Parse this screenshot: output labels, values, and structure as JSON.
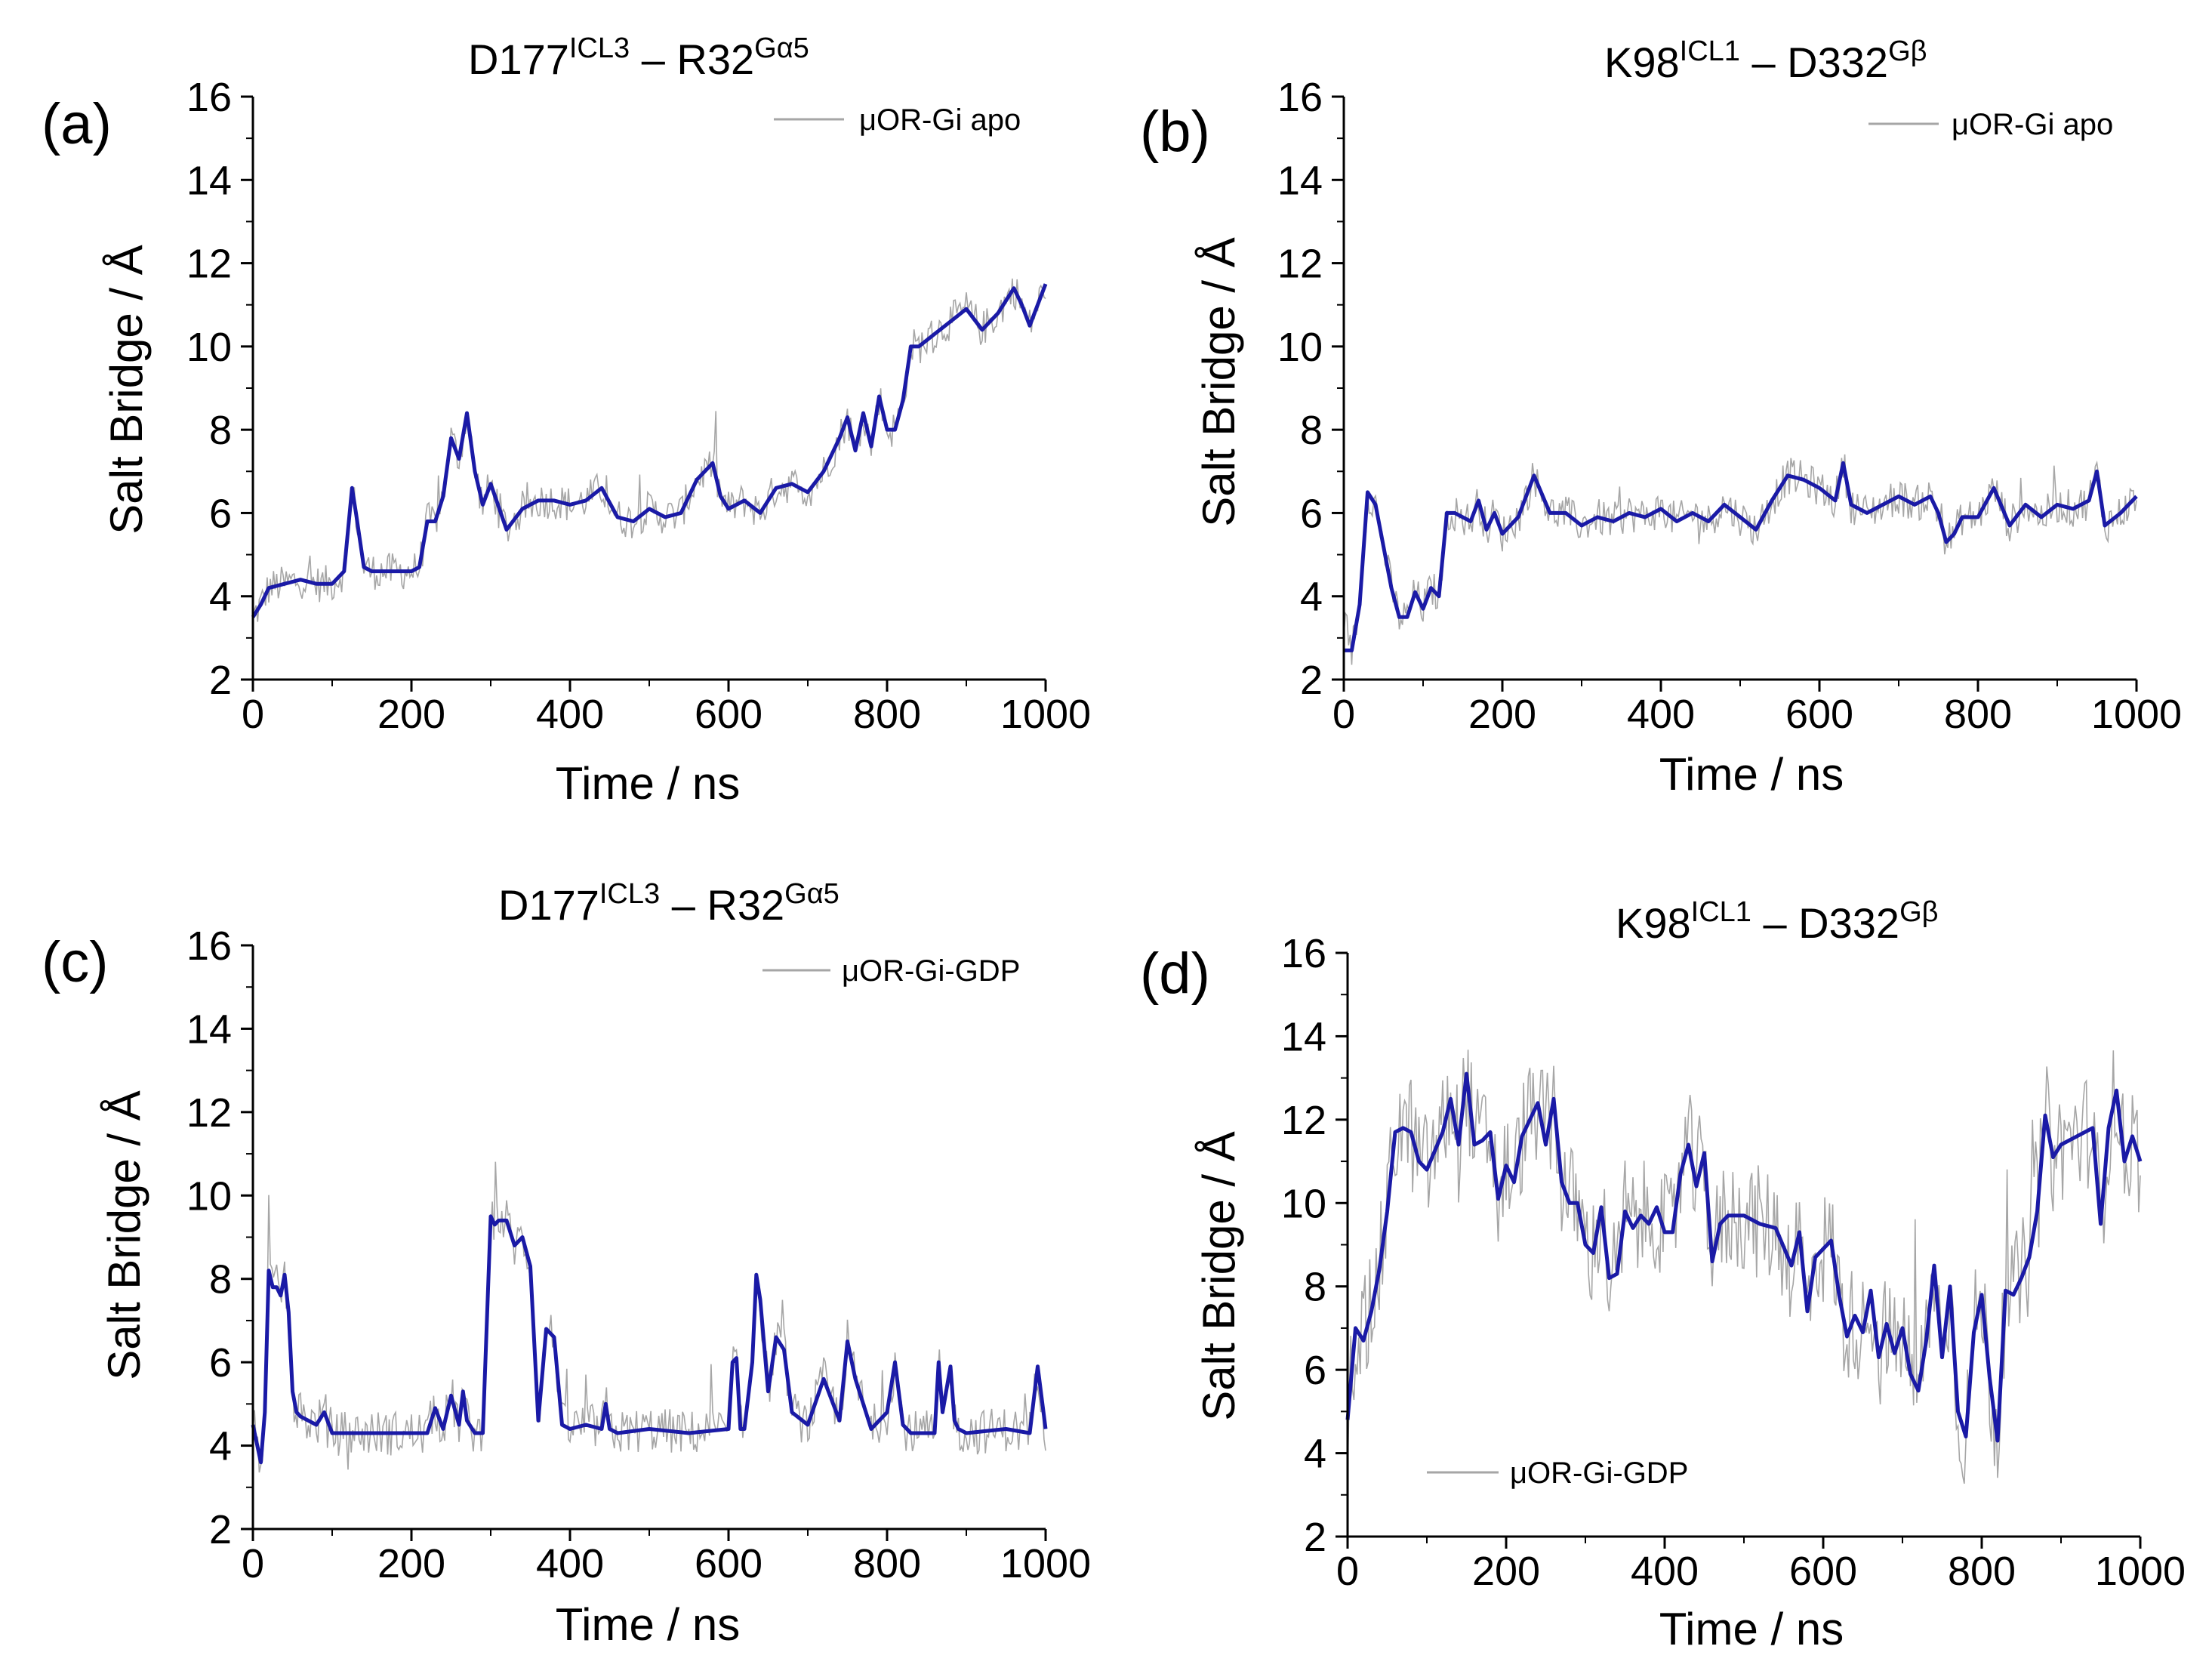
{
  "figure": {
    "series_colors": {
      "raw": "#a6a6a6",
      "smoothed": "#1a1aa6"
    },
    "x_ticks": [
      0,
      200,
      400,
      600,
      800,
      1000
    ],
    "y_ticks": [
      2,
      4,
      6,
      8,
      10,
      12,
      14,
      16
    ]
  },
  "chart_data": [
    {
      "panel": "(a)",
      "type": "line",
      "title": {
        "base1": "D177",
        "sup1": "ICL3",
        "mid": " –  R32",
        "sup2": "Gα5"
      },
      "xlabel": "Time / ns",
      "ylabel": "Salt Bridge / Å",
      "xlim": [
        0,
        1000
      ],
      "ylim": [
        2,
        16
      ],
      "legend": {
        "label": "μOR-Gi apo",
        "position": "top-right"
      },
      "series": [
        {
          "name": "μOR-Gi apo (smoothed)",
          "x": [
            0,
            10,
            20,
            40,
            60,
            80,
            100,
            115,
            125,
            130,
            140,
            150,
            180,
            200,
            210,
            220,
            230,
            240,
            250,
            260,
            270,
            280,
            290,
            300,
            320,
            340,
            360,
            380,
            400,
            420,
            440,
            460,
            480,
            500,
            520,
            540,
            560,
            580,
            590,
            600,
            620,
            640,
            660,
            680,
            700,
            720,
            740,
            750,
            760,
            770,
            780,
            790,
            800,
            810,
            820,
            830,
            840,
            860,
            880,
            900,
            920,
            940,
            960,
            970,
            980,
            1000
          ],
          "y": [
            3.5,
            3.8,
            4.2,
            4.3,
            4.4,
            4.3,
            4.3,
            4.6,
            6.6,
            6.0,
            4.7,
            4.6,
            4.6,
            4.6,
            4.7,
            5.8,
            5.8,
            6.4,
            7.8,
            7.3,
            8.4,
            7.0,
            6.2,
            6.7,
            5.6,
            6.1,
            6.3,
            6.3,
            6.2,
            6.3,
            6.6,
            5.9,
            5.8,
            6.1,
            5.9,
            6.0,
            6.8,
            7.2,
            6.4,
            6.1,
            6.3,
            6.0,
            6.6,
            6.7,
            6.5,
            7.0,
            7.8,
            8.3,
            7.5,
            8.4,
            7.6,
            8.8,
            8.0,
            8.0,
            8.7,
            10.0,
            10.0,
            10.3,
            10.6,
            10.9,
            10.4,
            10.8,
            11.4,
            11.0,
            10.5,
            11.5
          ]
        }
      ]
    },
    {
      "panel": "(b)",
      "type": "line",
      "title": {
        "base1": "K98",
        "sup1": "ICL1",
        "mid": " – D332",
        "sup2": "Gβ"
      },
      "xlabel": "Time / ns",
      "ylabel": "Salt Bridge / Å",
      "xlim": [
        0,
        1000
      ],
      "ylim": [
        2,
        16
      ],
      "legend": {
        "label": "μOR-Gi apo",
        "position": "top-right"
      },
      "series": [
        {
          "name": "μOR-Gi apo (smoothed)",
          "x": [
            0,
            10,
            20,
            30,
            40,
            50,
            60,
            70,
            80,
            90,
            100,
            110,
            120,
            130,
            140,
            160,
            170,
            180,
            190,
            200,
            220,
            240,
            260,
            280,
            300,
            320,
            340,
            360,
            380,
            400,
            420,
            440,
            460,
            480,
            500,
            520,
            540,
            560,
            580,
            600,
            620,
            630,
            640,
            660,
            680,
            700,
            720,
            740,
            750,
            760,
            770,
            780,
            800,
            820,
            840,
            860,
            880,
            900,
            920,
            940,
            950,
            960,
            980,
            1000
          ],
          "y": [
            2.7,
            2.7,
            3.8,
            6.5,
            6.2,
            5.2,
            4.2,
            3.5,
            3.5,
            4.1,
            3.7,
            4.2,
            4.0,
            6.0,
            6.0,
            5.8,
            6.3,
            5.6,
            6.0,
            5.5,
            5.9,
            6.9,
            6.0,
            6.0,
            5.7,
            5.9,
            5.8,
            6.0,
            5.9,
            6.1,
            5.8,
            6.0,
            5.8,
            6.2,
            5.9,
            5.6,
            6.3,
            6.9,
            6.8,
            6.6,
            6.3,
            7.2,
            6.2,
            6.0,
            6.2,
            6.4,
            6.2,
            6.4,
            6.0,
            5.3,
            5.5,
            5.9,
            5.9,
            6.6,
            5.7,
            6.2,
            5.9,
            6.2,
            6.1,
            6.3,
            7.0,
            5.7,
            6.0,
            6.4
          ]
        }
      ]
    },
    {
      "panel": "(c)",
      "type": "line",
      "title": {
        "base1": "D177",
        "sup1": "ICL3",
        "mid": " –  R32",
        "sup2": "Gα5"
      },
      "xlabel": "Time / ns",
      "ylabel": "Salt Bridge / Å",
      "xlim": [
        0,
        1000
      ],
      "ylim": [
        2,
        16
      ],
      "legend": {
        "label": "μOR-Gi-GDP",
        "position": "top-right"
      },
      "series": [
        {
          "name": "μOR-Gi-GDP (smoothed)",
          "x": [
            0,
            10,
            15,
            20,
            25,
            30,
            35,
            40,
            45,
            50,
            55,
            60,
            80,
            90,
            100,
            150,
            200,
            220,
            230,
            240,
            250,
            260,
            265,
            270,
            280,
            290,
            300,
            305,
            310,
            320,
            330,
            340,
            350,
            360,
            370,
            380,
            390,
            400,
            420,
            440,
            445,
            450,
            460,
            500,
            550,
            600,
            605,
            610,
            615,
            620,
            630,
            635,
            640,
            650,
            660,
            670,
            680,
            700,
            720,
            740,
            750,
            760,
            780,
            800,
            810,
            820,
            830,
            860,
            865,
            870,
            880,
            885,
            890,
            900,
            950,
            980,
            990,
            1000
          ],
          "y": [
            4.5,
            3.6,
            4.8,
            8.2,
            7.8,
            7.8,
            7.6,
            8.1,
            7.2,
            5.3,
            4.8,
            4.7,
            4.5,
            4.8,
            4.3,
            4.3,
            4.3,
            4.3,
            4.9,
            4.4,
            5.2,
            4.5,
            5.3,
            4.6,
            4.3,
            4.3,
            9.5,
            9.3,
            9.4,
            9.4,
            8.8,
            9.0,
            8.3,
            4.6,
            6.8,
            6.6,
            4.5,
            4.4,
            4.5,
            4.4,
            5.0,
            4.4,
            4.3,
            4.4,
            4.3,
            4.4,
            6.0,
            6.1,
            4.4,
            4.4,
            6.0,
            8.1,
            7.5,
            5.3,
            6.6,
            6.3,
            4.8,
            4.5,
            5.6,
            4.6,
            6.5,
            5.6,
            4.4,
            4.8,
            6.0,
            4.5,
            4.3,
            4.3,
            6.0,
            4.8,
            5.9,
            4.6,
            4.4,
            4.3,
            4.4,
            4.3,
            5.9,
            4.4
          ]
        }
      ]
    },
    {
      "panel": "(d)",
      "type": "line",
      "title": {
        "base1": "K98",
        "sup1": "ICL1",
        "mid": " – D332",
        "sup2": "Gβ"
      },
      "xlabel": "Time / ns",
      "ylabel": "Salt Bridge / Å",
      "xlim": [
        0,
        1000
      ],
      "ylim": [
        2,
        16
      ],
      "legend": {
        "label": "μOR-Gi-GDP",
        "position": "bottom-left"
      },
      "series": [
        {
          "name": "μOR-Gi-GDP (smoothed)",
          "x": [
            0,
            10,
            20,
            30,
            40,
            50,
            60,
            70,
            80,
            90,
            100,
            120,
            130,
            140,
            150,
            160,
            170,
            180,
            190,
            200,
            210,
            220,
            240,
            250,
            260,
            270,
            280,
            290,
            300,
            310,
            320,
            330,
            340,
            350,
            360,
            370,
            380,
            390,
            400,
            410,
            420,
            430,
            440,
            450,
            460,
            470,
            480,
            500,
            520,
            540,
            560,
            570,
            580,
            590,
            600,
            610,
            620,
            630,
            640,
            650,
            660,
            670,
            680,
            690,
            700,
            710,
            720,
            730,
            740,
            750,
            760,
            770,
            780,
            790,
            800,
            810,
            820,
            830,
            840,
            850,
            860,
            870,
            880,
            890,
            900,
            920,
            940,
            950,
            960,
            970,
            980,
            990,
            1000
          ],
          "y": [
            4.8,
            7.0,
            6.7,
            7.4,
            8.4,
            9.8,
            11.7,
            11.8,
            11.7,
            11.0,
            10.8,
            11.7,
            12.5,
            11.4,
            13.1,
            11.4,
            11.5,
            11.7,
            10.1,
            10.9,
            10.5,
            11.6,
            12.4,
            11.4,
            12.5,
            10.5,
            10.0,
            10.0,
            9.0,
            8.8,
            9.9,
            8.2,
            8.3,
            9.8,
            9.4,
            9.7,
            9.5,
            9.9,
            9.3,
            9.3,
            10.7,
            11.4,
            10.4,
            11.2,
            8.6,
            9.5,
            9.7,
            9.7,
            9.5,
            9.4,
            8.5,
            9.3,
            7.4,
            8.7,
            8.9,
            9.1,
            7.8,
            6.8,
            7.3,
            6.9,
            7.9,
            6.3,
            7.1,
            6.4,
            7.0,
            5.9,
            5.5,
            6.7,
            8.5,
            6.3,
            8.0,
            5.0,
            4.4,
            6.9,
            7.8,
            5.8,
            4.3,
            7.9,
            7.8,
            8.2,
            8.7,
            9.8,
            12.1,
            11.1,
            11.4,
            11.6,
            11.8,
            9.5,
            11.8,
            12.7,
            11.0,
            11.6,
            11.0
          ]
        }
      ]
    }
  ]
}
